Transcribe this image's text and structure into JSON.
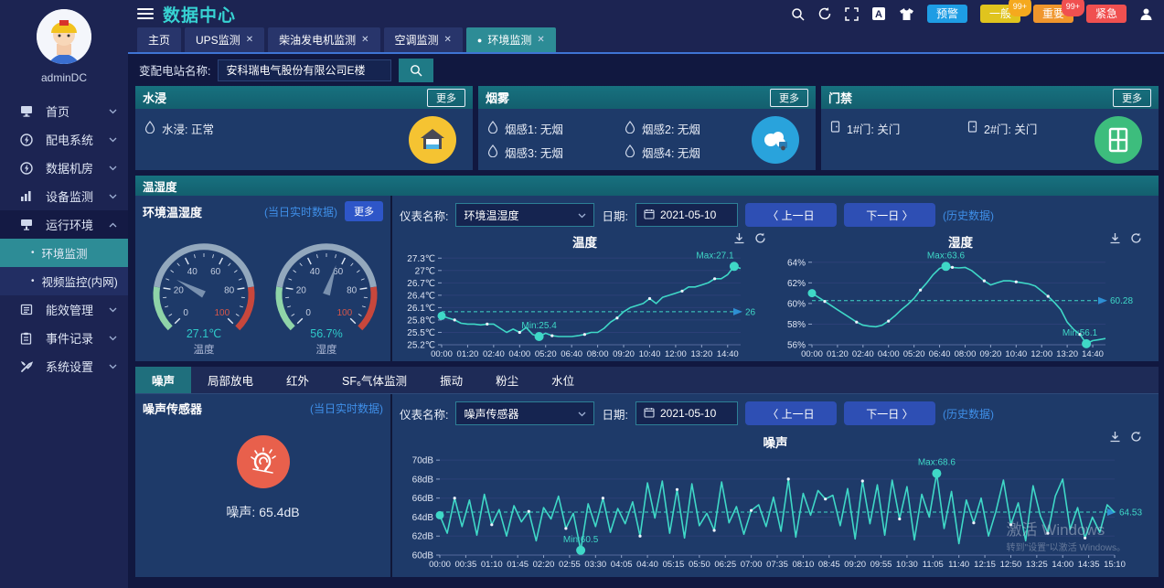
{
  "colors": {
    "accent_teal": "#2d8c96",
    "chart_line": "#3fd8c7",
    "panel_bg": "#1e3a69",
    "header_teal": "#17717f",
    "link_blue": "#3f8fe8",
    "button_blue": "#2e56c8"
  },
  "sidebar": {
    "username": "adminDC",
    "items": [
      {
        "label": "首页",
        "icon": "home-icon",
        "chevron": "down"
      },
      {
        "label": "配电系统",
        "icon": "power-system-icon",
        "chevron": "down"
      },
      {
        "label": "数据机房",
        "icon": "data-room-icon",
        "chevron": "down"
      },
      {
        "label": "设备监测",
        "icon": "device-monitor-icon",
        "chevron": "down"
      },
      {
        "label": "运行环境",
        "icon": "environment-icon",
        "chevron": "up",
        "expanded": true,
        "children": [
          {
            "label": "环境监测",
            "active": true
          },
          {
            "label": "视频监控(内网)",
            "active": false
          }
        ]
      },
      {
        "label": "能效管理",
        "icon": "energy-icon",
        "chevron": "down"
      },
      {
        "label": "事件记录",
        "icon": "event-log-icon",
        "chevron": "down"
      },
      {
        "label": "系统设置",
        "icon": "settings-icon",
        "chevron": "down"
      }
    ]
  },
  "header": {
    "title": "数据中心",
    "tool_icons": [
      "search-icon",
      "refresh-icon",
      "fullscreen-icon",
      "font-size-icon",
      "theme-icon"
    ],
    "alarms": [
      {
        "label": "预警",
        "color": "#1e9de4"
      },
      {
        "label": "一般",
        "color": "#e0c41e",
        "badge": "99+",
        "badge_color": "#f5a91e"
      },
      {
        "label": "重要",
        "color": "#f0962c",
        "badge": "99+",
        "badge_color": "#f05050"
      },
      {
        "label": "紧急",
        "color": "#f05050"
      }
    ]
  },
  "tabs": [
    {
      "label": "主页",
      "closable": false,
      "active": false
    },
    {
      "label": "UPS监测",
      "closable": true,
      "active": false
    },
    {
      "label": "柴油发电机监测",
      "closable": true,
      "active": false
    },
    {
      "label": "空调监测",
      "closable": true,
      "active": false
    },
    {
      "label": "环境监测",
      "closable": true,
      "active": true
    }
  ],
  "search": {
    "label": "变配电站名称:",
    "value": "安科瑞电气股份有限公司E楼"
  },
  "status_panels": [
    {
      "title": "水浸",
      "more": "更多",
      "big_icon": "house-icon",
      "icon_bg": "#f5c332",
      "items": [
        {
          "icon": "droplet-icon",
          "text": "水浸: 正常"
        }
      ]
    },
    {
      "title": "烟雾",
      "more": "更多",
      "big_icon": "smoke-cloud-icon",
      "icon_bg": "#29a3dc",
      "items": [
        {
          "icon": "droplet-icon",
          "text": "烟感1: 无烟"
        },
        {
          "icon": "droplet-icon",
          "text": "烟感2: 无烟"
        },
        {
          "icon": "droplet-icon",
          "text": "烟感3: 无烟"
        },
        {
          "icon": "droplet-icon",
          "text": "烟感4: 无烟"
        }
      ]
    },
    {
      "title": "门禁",
      "more": "更多",
      "big_icon": "door-icon",
      "icon_bg": "#3dbd7d",
      "items": [
        {
          "icon": "door-small-icon",
          "text": "1#门: 关门"
        },
        {
          "icon": "door-small-icon",
          "text": "2#门: 关门"
        }
      ]
    }
  ],
  "temp_hum": {
    "section_title": "温湿度",
    "panel_title": "环境温湿度",
    "realtime": "(当日实时数据)",
    "more": "更多",
    "controls": {
      "meter_label": "仪表名称:",
      "meter_value": "环境温湿度",
      "date_label": "日期:",
      "date_value": "2021-05-10",
      "prev": "〈  上一日",
      "next": "下一日  〉",
      "history": "(历史数据)"
    },
    "gauges": [
      {
        "label": "温度",
        "value": 27.1,
        "display": "27.1℃",
        "min": 0,
        "max": 100,
        "major_ticks": [
          0,
          20,
          40,
          60,
          80,
          100
        ]
      },
      {
        "label": "湿度",
        "value": 56.7,
        "display": "56.7%",
        "min": 0,
        "max": 100,
        "major_ticks": [
          0,
          20,
          40,
          60,
          80,
          100
        ]
      }
    ]
  },
  "noise": {
    "tabs": [
      "噪声",
      "局部放电",
      "红外",
      "SF₆气体监测",
      "振动",
      "粉尘",
      "水位"
    ],
    "active_tab": "噪声",
    "panel_title": "噪声传感器",
    "realtime": "(当日实时数据)",
    "reading": "噪声: 65.4dB",
    "big_icon": "ear-noise-icon",
    "icon_bg": "#e8604c",
    "controls": {
      "meter_label": "仪表名称:",
      "meter_value": "噪声传感器",
      "date_label": "日期:",
      "date_value": "2021-05-10",
      "prev": "〈  上一日",
      "next": "下一日  〉",
      "history": "(历史数据)"
    }
  },
  "watermark": {
    "line1": "激活 Windows",
    "line2": "转到\"设置\"以激活 Windows。"
  },
  "chart_data": [
    {
      "type": "line",
      "title": "温度",
      "ylabel": "℃",
      "legend_position": "none",
      "grid": true,
      "ylim": [
        25.2,
        27.35
      ],
      "y_tick_vals": [
        25.2,
        25.5,
        25.8,
        26.1,
        26.4,
        26.7,
        27,
        27.3
      ],
      "y_tick_labels": [
        "25.2℃",
        "25.5℃",
        "25.8℃",
        "26.1℃",
        "26.4℃",
        "26.7℃",
        "27℃",
        "27.3℃"
      ],
      "x_ticks": [
        "00:00",
        "01:20",
        "02:40",
        "04:00",
        "05:20",
        "06:40",
        "08:00",
        "09:20",
        "10:40",
        "12:00",
        "13:20",
        "14:40"
      ],
      "x_tick_step_frac": 0.086957,
      "values": [
        25.9,
        25.85,
        25.8,
        25.72,
        25.7,
        25.7,
        25.68,
        25.7,
        25.7,
        25.6,
        25.5,
        25.58,
        25.5,
        25.62,
        25.45,
        25.4,
        25.48,
        25.42,
        25.4,
        25.4,
        25.4,
        25.42,
        25.45,
        25.5,
        25.5,
        25.6,
        25.75,
        25.85,
        26.0,
        26.1,
        26.15,
        26.2,
        26.32,
        26.2,
        26.35,
        26.4,
        26.45,
        26.5,
        26.6,
        26.6,
        26.65,
        26.7,
        26.8,
        26.8,
        26.9,
        27.1,
        27.05
      ],
      "avg": 26,
      "avg_label": "26",
      "max": {
        "idx": 45,
        "value": 27.1,
        "label": "Max:27.1"
      },
      "min": {
        "idx": 15,
        "value": 25.4,
        "label": "Min:25.4"
      }
    },
    {
      "type": "line",
      "title": "湿度",
      "ylabel": "%",
      "legend_position": "none",
      "grid": true,
      "ylim": [
        56,
        64.6
      ],
      "y_tick_vals": [
        56,
        58,
        60,
        62,
        64
      ],
      "y_tick_labels": [
        "56%",
        "58%",
        "60%",
        "62%",
        "64%"
      ],
      "x_ticks": [
        "00:00",
        "01:20",
        "02:40",
        "04:00",
        "05:20",
        "06:40",
        "08:00",
        "09:20",
        "10:40",
        "12:00",
        "13:20",
        "14:40"
      ],
      "x_tick_step_frac": 0.086957,
      "values": [
        61.0,
        60.6,
        60.2,
        59.8,
        59.4,
        59.0,
        58.6,
        58.2,
        57.9,
        57.8,
        57.75,
        57.9,
        58.3,
        58.8,
        59.4,
        59.9,
        60.5,
        61.3,
        62.0,
        62.8,
        63.4,
        63.6,
        63.5,
        63.45,
        63.5,
        63.2,
        62.7,
        62.2,
        61.8,
        62.0,
        62.2,
        62.2,
        62.1,
        62.0,
        61.9,
        61.7,
        61.2,
        60.7,
        60.1,
        59.4,
        58.2,
        57.5,
        57.0,
        56.1,
        56.4,
        56.5,
        56.6
      ],
      "avg": 60.28,
      "avg_label": "60.28",
      "max": {
        "idx": 21,
        "value": 63.6,
        "label": "Max:63.6"
      },
      "min": {
        "idx": 43,
        "value": 56.1,
        "label": "Min:56.1"
      }
    },
    {
      "type": "line",
      "title": "噪声",
      "ylabel": "dB",
      "legend_position": "none",
      "grid": true,
      "ylim": [
        60,
        70.4
      ],
      "y_tick_vals": [
        60,
        62,
        64,
        66,
        68,
        70
      ],
      "y_tick_labels": [
        "60dB",
        "62dB",
        "64dB",
        "66dB",
        "68dB",
        "70dB"
      ],
      "x_ticks": [
        "00:00",
        "00:35",
        "01:10",
        "01:45",
        "02:20",
        "02:55",
        "03:30",
        "04:05",
        "04:40",
        "05:15",
        "05:50",
        "06:25",
        "07:00",
        "07:35",
        "08:10",
        "08:45",
        "09:20",
        "09:55",
        "10:30",
        "11:05",
        "11:40",
        "12:15",
        "12:50",
        "13:25",
        "14:00",
        "14:35",
        "15:10"
      ],
      "x_tick_step_frac": 0.0384615,
      "values": [
        64.2,
        62.3,
        66.0,
        63.0,
        65.8,
        62.1,
        66.4,
        63.2,
        64.8,
        62.0,
        65.2,
        63.5,
        64.6,
        61.5,
        65.0,
        63.8,
        66.2,
        62.8,
        64.4,
        60.5,
        65.4,
        63.0,
        66.0,
        62.4,
        64.9,
        63.3,
        65.6,
        62.0,
        67.6,
        63.9,
        67.8,
        62.3,
        66.9,
        61.8,
        67.5,
        63.1,
        64.4,
        62.6,
        67.7,
        63.4,
        65.1,
        62.2,
        64.7,
        65.3,
        63.0,
        66.1,
        62.5,
        68.0,
        61.9,
        66.5,
        64.2,
        66.8,
        65.9,
        66.3,
        63.1,
        67.0,
        61.7,
        67.8,
        63.3,
        67.4,
        62.1,
        67.9,
        63.8,
        67.2,
        61.6,
        66.4,
        64.0,
        68.6,
        62.8,
        66.7,
        61.2,
        65.8,
        63.4,
        66.0,
        62.0,
        64.6,
        67.9,
        63.2,
        65.5,
        61.5,
        67.3,
        64.1,
        62.3,
        66.2,
        68.0,
        62.7,
        65.0,
        61.8,
        64.0,
        62.4,
        65.3,
        64.5
      ],
      "avg": 64.53,
      "avg_label": "64.53",
      "max": {
        "idx": 67,
        "value": 68.6,
        "label": "Max:68.6"
      },
      "min": {
        "idx": 19,
        "value": 60.5,
        "label": "Min:60.5"
      }
    }
  ]
}
